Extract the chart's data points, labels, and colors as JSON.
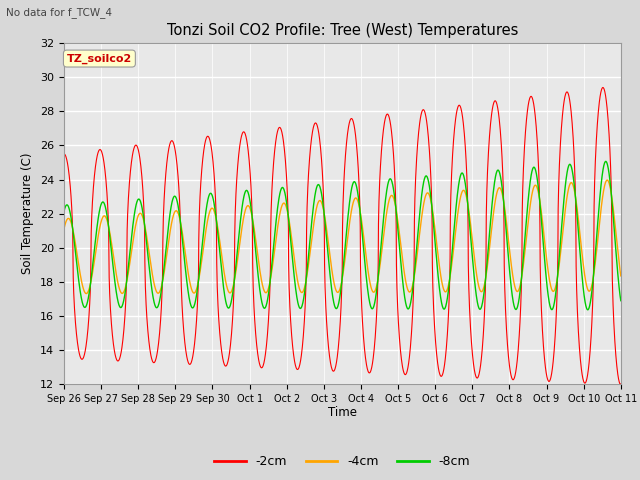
{
  "title": "Tonzi Soil CO2 Profile: Tree (West) Temperatures",
  "subtitle": "No data for f_TCW_4",
  "ylabel": "Soil Temperature (C)",
  "xlabel": "Time",
  "legend_label": "TZ_soilco2",
  "ylim": [
    12,
    32
  ],
  "yticks": [
    12,
    14,
    16,
    18,
    20,
    22,
    24,
    26,
    28,
    30,
    32
  ],
  "x_tick_labels": [
    "Sep 26",
    "Sep 27",
    "Sep 28",
    "Sep 29",
    "Sep 30",
    "Oct 1",
    "Oct 2",
    "Oct 3",
    "Oct 4",
    "Oct 5",
    "Oct 6",
    "Oct 7",
    "Oct 8",
    "Oct 9",
    "Oct 10",
    "Oct 11"
  ],
  "line_colors": {
    "2cm": "#ff0000",
    "4cm": "#ffa500",
    "8cm": "#00cc00"
  },
  "line_labels": [
    "-2cm",
    "-4cm",
    "-8cm"
  ],
  "fig_bg_color": "#d8d8d8",
  "plot_bg_color": "#e8e8e8",
  "grid_color": "#ffffff",
  "n_days": 15.5,
  "periods_per_day": 144
}
